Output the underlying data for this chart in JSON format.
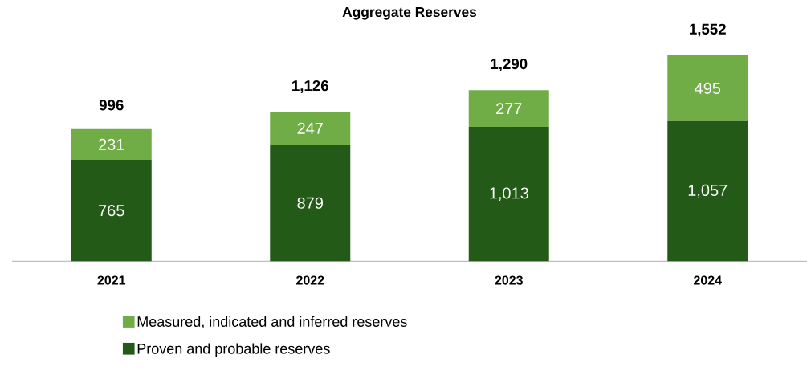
{
  "chart_data": {
    "type": "bar",
    "title": "Aggregate Reserves",
    "categories": [
      "2021",
      "2022",
      "2023",
      "2024"
    ],
    "stacked": true,
    "legend": "bottom",
    "series": [
      {
        "name": "Proven and probable reserves",
        "color": "#245a17",
        "values": [
          765,
          879,
          1013,
          1057
        ],
        "value_labels": [
          "765",
          "879",
          "1,013",
          "1,057"
        ]
      },
      {
        "name": "Measured, indicated and inferred reserves",
        "color": "#70ad47",
        "values": [
          231,
          247,
          277,
          495
        ],
        "value_labels": [
          "231",
          "247",
          "277",
          "495"
        ]
      }
    ],
    "totals": [
      "996",
      "1,126",
      "1,290",
      "1,552"
    ]
  }
}
